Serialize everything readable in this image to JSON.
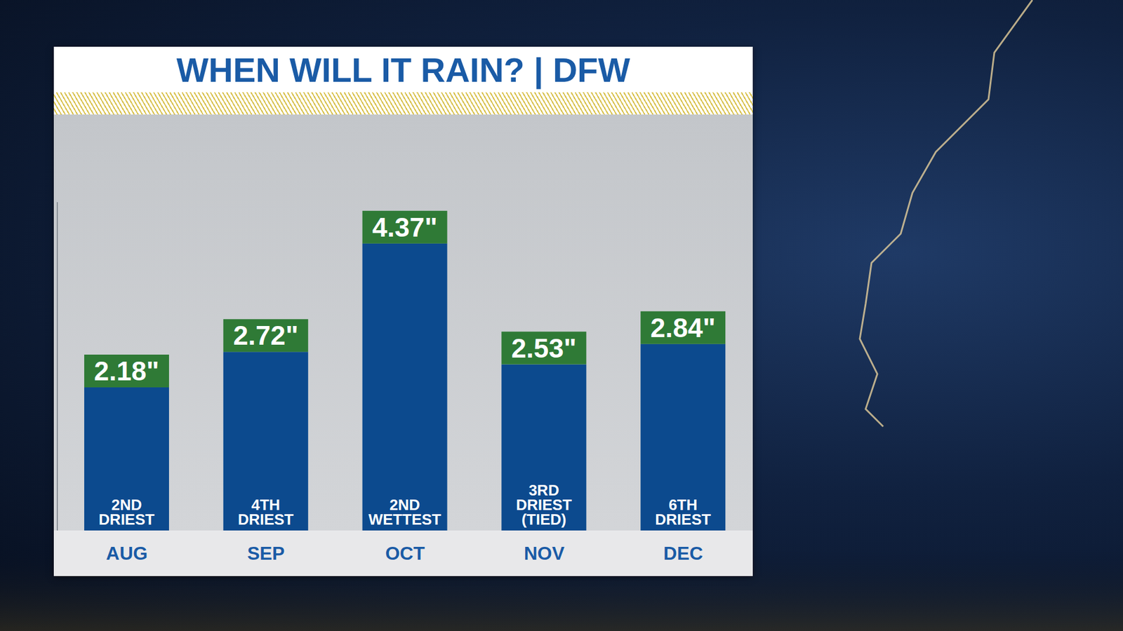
{
  "chart_data": {
    "type": "bar",
    "title": "WHEN WILL IT RAIN? | DFW",
    "categories": [
      "AUG",
      "SEP",
      "OCT",
      "NOV",
      "DEC"
    ],
    "values": [
      2.18,
      2.72,
      4.37,
      2.53,
      2.84
    ],
    "value_labels": [
      "2.18\"",
      "2.72\"",
      "4.37\"",
      "2.53\"",
      "2.84\""
    ],
    "annotations": [
      "2ND DRIEST",
      "4TH DRIEST",
      "2ND WETTEST",
      "3RD DRIEST (TIED)",
      "6TH DRIEST"
    ],
    "color": "#0c4a8e",
    "ylim": [
      0,
      5
    ],
    "data_labels": true,
    "tick_labels": "x",
    "grid": false
  }
}
